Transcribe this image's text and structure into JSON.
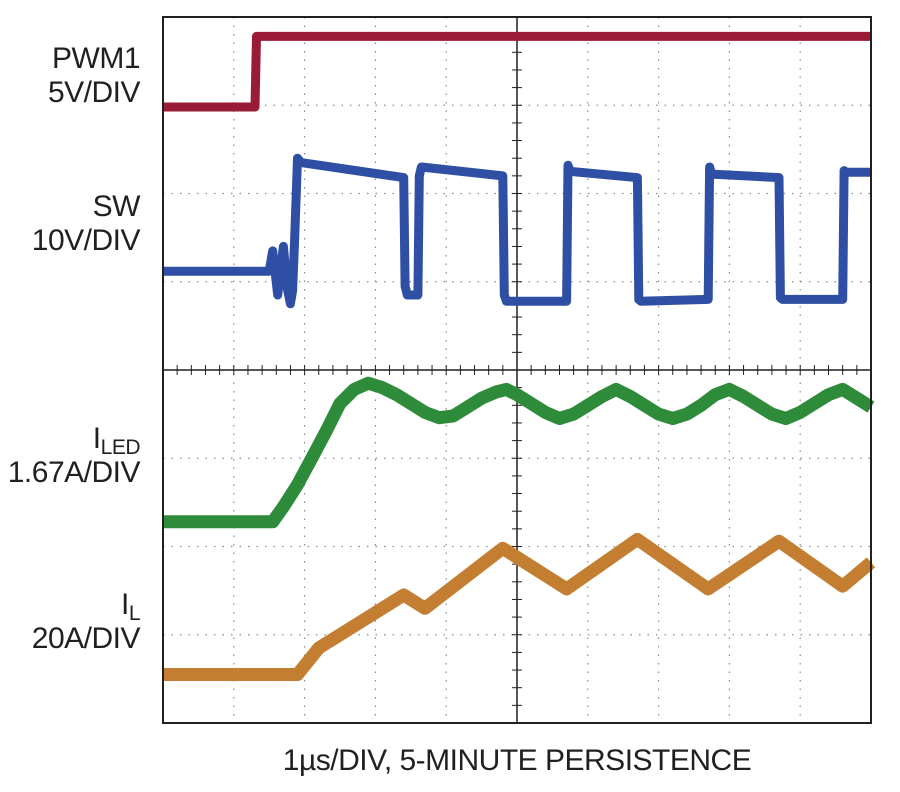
{
  "chart_data": {
    "type": "line",
    "title": "",
    "xlabel": "1µs/DIV, 5-MINUTE PERSISTENCE",
    "x_unit": "µs",
    "x_range": [
      0,
      10
    ],
    "y_unit": "divisions",
    "y_range": [
      0,
      8
    ],
    "grid": true,
    "channels": [
      {
        "name_main": "PWM1",
        "name_sub": "",
        "scale": "5V/DIV",
        "color": "#9a1b35",
        "x": [
          0,
          1.3,
          1.32,
          10
        ],
        "y": [
          6.98,
          6.98,
          7.78,
          7.78
        ]
      },
      {
        "name_main": "SW",
        "name_sub": "",
        "scale": "10V/DIV",
        "color": "#2e4fa3",
        "x": [
          0,
          1.5,
          1.55,
          1.62,
          1.7,
          1.75,
          1.8,
          1.83,
          1.86,
          1.9,
          1.95,
          3.4,
          3.42,
          3.45,
          3.6,
          3.62,
          3.65,
          4.8,
          4.82,
          4.85,
          5.7,
          5.72,
          5.75,
          6.7,
          6.72,
          6.75,
          7.7,
          7.72,
          7.75,
          8.7,
          8.72,
          8.75,
          9.6,
          9.62,
          9.65,
          10
        ],
        "y": [
          5.12,
          5.12,
          5.35,
          4.85,
          5.4,
          4.95,
          4.75,
          4.9,
          5.5,
          6.4,
          6.35,
          6.18,
          4.95,
          4.85,
          4.85,
          6.2,
          6.3,
          6.2,
          4.85,
          4.78,
          4.78,
          6.32,
          6.25,
          6.18,
          4.8,
          4.78,
          4.8,
          6.3,
          6.22,
          6.18,
          4.82,
          4.8,
          4.8,
          6.26,
          6.24,
          6.24
        ]
      },
      {
        "name_main": "I",
        "name_sub": "LED",
        "scale": "1.67A/DIV",
        "color": "#2e8b3a",
        "x": [
          0,
          1.55,
          1.7,
          1.9,
          2.1,
          2.3,
          2.5,
          2.7,
          2.9,
          3.1,
          3.3,
          3.5,
          3.7,
          3.9,
          4.1,
          4.3,
          4.5,
          4.7,
          4.85,
          5.0,
          5.2,
          5.4,
          5.6,
          5.8,
          6.0,
          6.2,
          6.4,
          6.6,
          6.8,
          7.0,
          7.2,
          7.4,
          7.6,
          7.8,
          8.0,
          8.2,
          8.4,
          8.6,
          8.8,
          9.0,
          9.2,
          9.4,
          9.6,
          9.8,
          10
        ],
        "y": [
          2.28,
          2.28,
          2.45,
          2.7,
          3.0,
          3.3,
          3.62,
          3.78,
          3.85,
          3.8,
          3.72,
          3.62,
          3.52,
          3.46,
          3.48,
          3.58,
          3.68,
          3.75,
          3.78,
          3.72,
          3.62,
          3.52,
          3.45,
          3.5,
          3.6,
          3.7,
          3.78,
          3.7,
          3.6,
          3.5,
          3.45,
          3.5,
          3.6,
          3.72,
          3.78,
          3.7,
          3.6,
          3.5,
          3.45,
          3.52,
          3.62,
          3.72,
          3.78,
          3.68,
          3.58
        ]
      },
      {
        "name_main": "I",
        "name_sub": "L",
        "scale": "20A/DIV",
        "color": "#c47e32",
        "x": [
          0,
          1.9,
          2.2,
          3.4,
          3.7,
          4.8,
          5.7,
          6.7,
          7.7,
          8.7,
          9.6,
          10
        ],
        "y": [
          0.55,
          0.55,
          0.85,
          1.45,
          1.3,
          1.98,
          1.52,
          2.08,
          1.52,
          2.06,
          1.55,
          1.82
        ]
      }
    ]
  }
}
